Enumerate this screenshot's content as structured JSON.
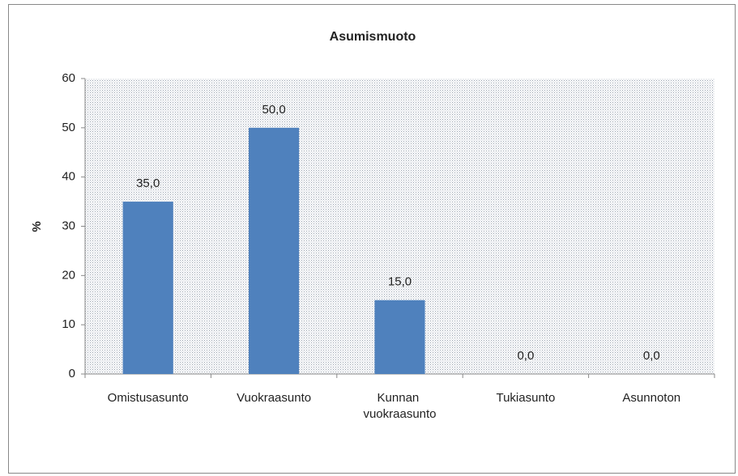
{
  "chart_data": {
    "type": "bar",
    "title": "Asumismuoto",
    "y_label": "%",
    "categories": [
      "Omistusasunto",
      "Vuokraasunto",
      "Kunnan vuokraasunto",
      "Tukiasunto",
      "Asunnoton"
    ],
    "values": [
      35,
      50,
      15,
      0,
      0
    ],
    "value_labels": [
      "35,0",
      "50,0",
      "15,0",
      "0,0",
      "0,0"
    ],
    "color": "#4f81bd",
    "ylim": [
      0,
      60
    ],
    "yticks": [
      0,
      10,
      20,
      30,
      40,
      50,
      60
    ],
    "grid": false
  }
}
